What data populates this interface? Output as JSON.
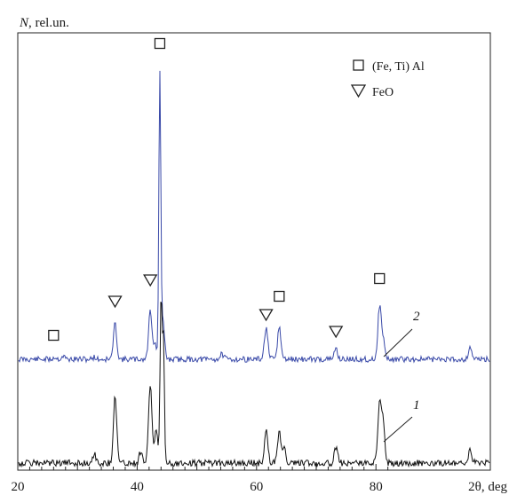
{
  "chart_data": {
    "type": "line",
    "title": "",
    "ylabel_var": "N",
    "ylabel_rest": ", rel.un.",
    "xlabel": "2θ, deg",
    "xlim": [
      20,
      82
    ],
    "x_ticks": [
      20,
      40,
      60,
      80
    ],
    "y_ticks_shown": false,
    "grid": false,
    "legend": {
      "placement": "top-right",
      "entries": [
        {
          "marker": "square",
          "label": "(Fe, Ti) Al"
        },
        {
          "marker": "triangle-down",
          "label": "FeO"
        }
      ]
    },
    "series": [
      {
        "label": "2",
        "color": "#3949a8",
        "baseline": 0,
        "peaks": [
          {
            "x": 26.2,
            "height": 0.02
          },
          {
            "x": 27.6,
            "height": 0.03
          },
          {
            "x": 32.8,
            "height": 0.02
          },
          {
            "x": 36.3,
            "height": 0.33
          },
          {
            "x": 42.2,
            "height": 0.46
          },
          {
            "x": 43.0,
            "height": 0.14
          },
          {
            "x": 43.8,
            "height": 2.65
          },
          {
            "x": 44.3,
            "height": 0.35
          },
          {
            "x": 54.2,
            "height": 0.05
          },
          {
            "x": 61.6,
            "height": 0.3
          },
          {
            "x": 63.8,
            "height": 0.3
          },
          {
            "x": 73.3,
            "height": 0.1
          },
          {
            "x": 80.6,
            "height": 0.49
          },
          {
            "x": 81.2,
            "height": 0.18
          },
          {
            "x": 95.8,
            "height": 0.12
          }
        ]
      },
      {
        "label": "1",
        "color": "#111111",
        "baseline": 0,
        "peaks": [
          {
            "x": 32.8,
            "height": 0.09
          },
          {
            "x": 36.3,
            "height": 0.63
          },
          {
            "x": 40.6,
            "height": 0.11
          },
          {
            "x": 42.2,
            "height": 0.74
          },
          {
            "x": 43.2,
            "height": 0.3
          },
          {
            "x": 44.0,
            "height": 1.55
          },
          {
            "x": 44.4,
            "height": 1.2
          },
          {
            "x": 61.6,
            "height": 0.31
          },
          {
            "x": 63.8,
            "height": 0.3
          },
          {
            "x": 64.6,
            "height": 0.14
          },
          {
            "x": 73.3,
            "height": 0.14
          },
          {
            "x": 80.6,
            "height": 0.56
          },
          {
            "x": 81.2,
            "height": 0.4
          },
          {
            "x": 95.8,
            "height": 0.12
          }
        ]
      }
    ],
    "phase_markers": [
      {
        "phase": "(Fe, Ti) Al",
        "marker": "square",
        "x": 26.0
      },
      {
        "phase": "FeO",
        "marker": "triangle-down",
        "x": 36.3
      },
      {
        "phase": "FeO",
        "marker": "triangle-down",
        "x": 42.2
      },
      {
        "phase": "(Fe, Ti) Al",
        "marker": "square",
        "x": 43.8
      },
      {
        "phase": "FeO",
        "marker": "triangle-down",
        "x": 61.6
      },
      {
        "phase": "(Fe, Ti) Al",
        "marker": "square",
        "x": 63.8
      },
      {
        "phase": "FeO",
        "marker": "triangle-down",
        "x": 73.3
      },
      {
        "phase": "(Fe, Ti) Al",
        "marker": "square",
        "x": 80.6
      }
    ]
  }
}
